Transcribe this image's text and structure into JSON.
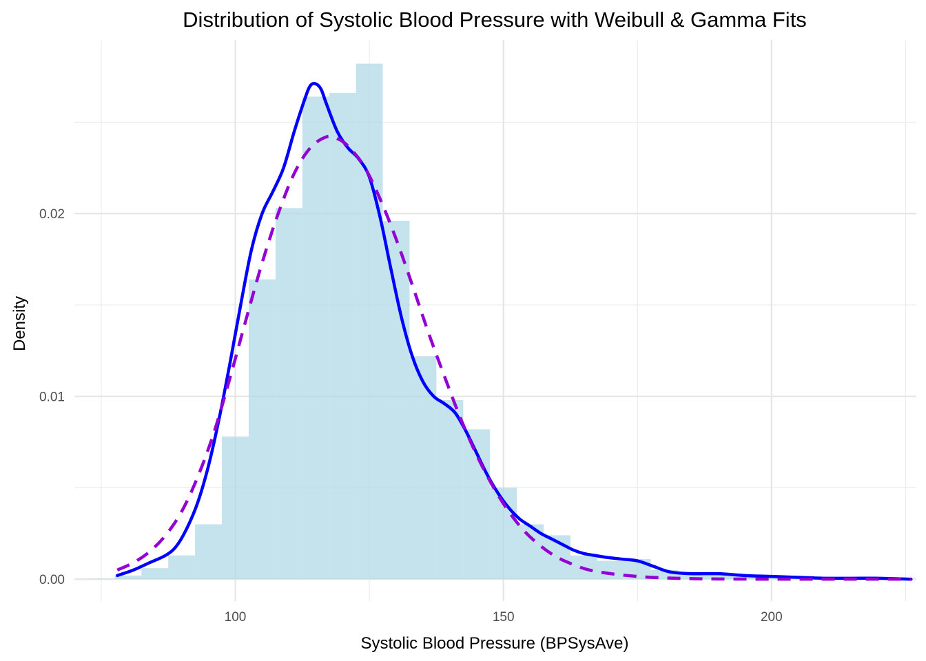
{
  "chart_data": {
    "type": "bar",
    "title": "Distribution of Systolic Blood Pressure with Weibull & Gamma Fits",
    "xlabel": "Systolic Blood Pressure (BPSysAve)",
    "ylabel": "Density",
    "xlim": [
      70,
      227
    ],
    "ylim": [
      -0.0012,
      0.0295
    ],
    "x_ticks": [
      100,
      150,
      200
    ],
    "x_tick_labels": [
      "100",
      "150",
      "200"
    ],
    "y_ticks": [
      0,
      0.01,
      0.02
    ],
    "y_tick_labels": [
      "0.00",
      "0.01",
      "0.02"
    ],
    "grid": true,
    "legend": "none",
    "histogram": {
      "bin_width": 5,
      "color": "#add8e6",
      "bins": [
        {
          "x0": 72.5,
          "x1": 77.5,
          "density": 2e-05
        },
        {
          "x0": 77.5,
          "x1": 82.5,
          "density": 0.0002
        },
        {
          "x0": 82.5,
          "x1": 87.5,
          "density": 0.0006
        },
        {
          "x0": 87.5,
          "x1": 92.5,
          "density": 0.0013
        },
        {
          "x0": 92.5,
          "x1": 97.5,
          "density": 0.003
        },
        {
          "x0": 97.5,
          "x1": 102.5,
          "density": 0.0078
        },
        {
          "x0": 102.5,
          "x1": 107.5,
          "density": 0.0164
        },
        {
          "x0": 107.5,
          "x1": 112.5,
          "density": 0.0203
        },
        {
          "x0": 112.5,
          "x1": 117.5,
          "density": 0.0264
        },
        {
          "x0": 117.5,
          "x1": 122.5,
          "density": 0.0266
        },
        {
          "x0": 122.5,
          "x1": 127.5,
          "density": 0.0282
        },
        {
          "x0": 127.5,
          "x1": 132.5,
          "density": 0.0196
        },
        {
          "x0": 132.5,
          "x1": 137.5,
          "density": 0.0122
        },
        {
          "x0": 137.5,
          "x1": 142.5,
          "density": 0.0098
        },
        {
          "x0": 142.5,
          "x1": 147.5,
          "density": 0.0082
        },
        {
          "x0": 147.5,
          "x1": 152.5,
          "density": 0.005
        },
        {
          "x0": 152.5,
          "x1": 157.5,
          "density": 0.003
        },
        {
          "x0": 157.5,
          "x1": 162.5,
          "density": 0.0024
        },
        {
          "x0": 162.5,
          "x1": 167.5,
          "density": 0.0013
        },
        {
          "x0": 167.5,
          "x1": 172.5,
          "density": 0.001
        },
        {
          "x0": 172.5,
          "x1": 177.5,
          "density": 0.0011
        },
        {
          "x0": 177.5,
          "x1": 182.5,
          "density": 0.0005
        },
        {
          "x0": 182.5,
          "x1": 187.5,
          "density": 0.0003
        },
        {
          "x0": 187.5,
          "x1": 192.5,
          "density": 0.0003
        },
        {
          "x0": 192.5,
          "x1": 197.5,
          "density": 0.0002
        },
        {
          "x0": 197.5,
          "x1": 202.5,
          "density": 0.0001
        },
        {
          "x0": 202.5,
          "x1": 207.5,
          "density": 0.0001
        },
        {
          "x0": 207.5,
          "x1": 212.5,
          "density": 5e-05
        },
        {
          "x0": 212.5,
          "x1": 217.5,
          "density": 5e-05
        },
        {
          "x0": 217.5,
          "x1": 222.5,
          "density": 5e-05
        }
      ]
    },
    "series": [
      {
        "type": "line",
        "style": "solid",
        "color": "#0000ff",
        "x": [
          78,
          81,
          84,
          87,
          89,
          91,
          93,
          95,
          97,
          99,
          101,
          103,
          105,
          107,
          109,
          111,
          113,
          114,
          115,
          116,
          117,
          119,
          121,
          123,
          125,
          127,
          129,
          131,
          133,
          135,
          137,
          139,
          141,
          143,
          145,
          147,
          149,
          151,
          153,
          155,
          157,
          159,
          161,
          163,
          165,
          167,
          169,
          172,
          175,
          178,
          181,
          185,
          190,
          195,
          200,
          205,
          210,
          215,
          220,
          226
        ],
        "y": [
          0.0002,
          0.0005,
          0.0009,
          0.0013,
          0.0018,
          0.0028,
          0.0042,
          0.0062,
          0.0088,
          0.0118,
          0.015,
          0.018,
          0.02,
          0.0212,
          0.0225,
          0.0245,
          0.0263,
          0.027,
          0.0271,
          0.0268,
          0.026,
          0.0245,
          0.0236,
          0.023,
          0.022,
          0.0198,
          0.017,
          0.0143,
          0.0122,
          0.0108,
          0.01,
          0.0096,
          0.0091,
          0.0081,
          0.0069,
          0.0057,
          0.0047,
          0.0039,
          0.0033,
          0.0029,
          0.0025,
          0.0022,
          0.0019,
          0.0016,
          0.0014,
          0.0013,
          0.0012,
          0.0011,
          0.001,
          0.0007,
          0.0004,
          0.0003,
          0.0003,
          0.0002,
          0.00015,
          0.0001,
          5e-05,
          5e-05,
          5e-05,
          0.0
        ]
      },
      {
        "type": "line",
        "style": "dashed",
        "color": "#9400d3",
        "x": [
          78,
          81,
          84,
          87,
          90,
          93,
          96,
          99,
          102,
          105,
          108,
          111,
          114,
          117,
          119,
          121,
          124,
          127,
          130,
          133,
          136,
          139,
          142,
          145,
          148,
          151,
          154,
          157,
          160,
          163,
          166,
          170,
          175,
          180,
          185,
          190,
          200,
          210,
          220,
          226
        ],
        "y": [
          0.0005,
          0.0009,
          0.0015,
          0.0024,
          0.0037,
          0.0056,
          0.008,
          0.011,
          0.0142,
          0.0173,
          0.02,
          0.0222,
          0.0236,
          0.0242,
          0.0241,
          0.0237,
          0.0226,
          0.0208,
          0.0186,
          0.0161,
          0.0135,
          0.0111,
          0.0088,
          0.0068,
          0.0051,
          0.0037,
          0.0026,
          0.0018,
          0.0012,
          0.0008,
          0.0005,
          0.0003,
          0.00015,
          7e-05,
          3e-05,
          1e-05,
          0.0,
          0.0,
          0.0,
          0.0
        ]
      }
    ]
  }
}
